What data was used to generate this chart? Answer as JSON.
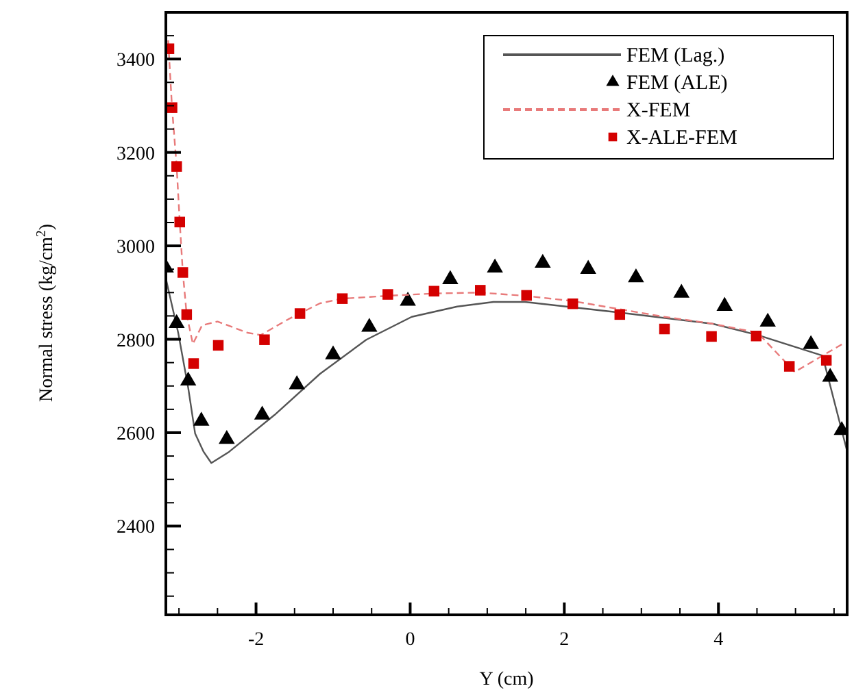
{
  "chart_data": {
    "type": "line",
    "xlabel": "Y (cm)",
    "ylabel": "Normal stress (kg/cm$^{2}$)",
    "xlim": [
      -3.17,
      5.67
    ],
    "ylim": [
      2210,
      3500
    ],
    "xticks": [
      {
        "value": -3,
        "label": null
      },
      {
        "value": -2.5,
        "label": null
      },
      -2,
      {
        "value": -1.5,
        "label": null
      },
      {
        "value": -1,
        "label": null
      },
      {
        "value": -0.5,
        "label": null
      },
      0,
      {
        "value": 0.5,
        "label": null
      },
      {
        "value": 1,
        "label": null
      },
      {
        "value": 1.5,
        "label": null
      },
      2,
      {
        "value": 2.5,
        "label": null
      },
      {
        "value": 3,
        "label": null
      },
      {
        "value": 3.5,
        "label": null
      },
      4,
      {
        "value": 4.5,
        "label": null
      },
      {
        "value": 5,
        "label": null
      },
      {
        "value": 5.5,
        "label": null
      }
    ],
    "yticks": [
      {
        "value": 2250,
        "label": null
      },
      {
        "value": 2300,
        "label": null
      },
      {
        "value": 2350,
        "label": null
      },
      2400,
      {
        "value": 2450,
        "label": null
      },
      {
        "value": 2500,
        "label": null
      },
      {
        "value": 2550,
        "label": null
      },
      2600,
      {
        "value": 2650,
        "label": null
      },
      {
        "value": 2700,
        "label": null
      },
      {
        "value": 2750,
        "label": null
      },
      2800,
      {
        "value": 2850,
        "label": null
      },
      {
        "value": 2900,
        "label": null
      },
      {
        "value": 2950,
        "label": null
      },
      3000,
      {
        "value": 3050,
        "label": null
      },
      {
        "value": 3100,
        "label": null
      },
      {
        "value": 3150,
        "label": null
      },
      3200,
      {
        "value": 3250,
        "label": null
      },
      {
        "value": 3300,
        "label": null
      },
      {
        "value": 3350,
        "label": null
      },
      3400,
      {
        "value": 3450,
        "label": null
      }
    ],
    "grid": false,
    "legend": "top right",
    "series": [
      {
        "name": "FEM (Lag.)",
        "color": "#555555",
        "line_style": "solid",
        "marker": "none",
        "x": [
          -3.17,
          -3.01,
          -2.88,
          -2.79,
          -2.68,
          -2.58,
          -2.35,
          -1.76,
          -1.17,
          -0.57,
          0.02,
          0.61,
          1.08,
          1.49,
          2.68,
          3.93,
          4.51,
          5.35,
          5.67
        ],
        "values": [
          2930,
          2814,
          2696,
          2598,
          2559,
          2535,
          2559,
          2638,
          2726,
          2799,
          2848,
          2870,
          2880,
          2880,
          2858,
          2833,
          2809,
          2765,
          2560
        ]
      },
      {
        "name": "FEM (ALE)",
        "type": "scatter",
        "color": "#000000",
        "marker": "triangle",
        "x": [
          -3.17,
          -3.03,
          -2.88,
          -2.71,
          -2.38,
          -1.92,
          -1.47,
          -1.0,
          -0.53,
          -0.03,
          0.52,
          1.1,
          1.72,
          2.31,
          2.93,
          3.52,
          4.08,
          4.64,
          5.2,
          5.45,
          5.6
        ],
        "values": [
          2953,
          2834,
          2711,
          2625,
          2586,
          2638,
          2703,
          2767,
          2826,
          2882,
          2928,
          2953,
          2963,
          2950,
          2932,
          2899,
          2871,
          2837,
          2789,
          2719,
          2605
        ]
      },
      {
        "name": "X-FEM",
        "color": "#e87a7a",
        "line_style": "dashed",
        "marker": "none",
        "x": [
          -3.14,
          -3.09,
          -3.03,
          -2.99,
          -2.95,
          -2.9,
          -2.82,
          -2.7,
          -2.5,
          -2.11,
          -1.94,
          -1.58,
          -1.17,
          -0.88,
          -0.3,
          0.3,
          0.9,
          1.5,
          2.1,
          2.7,
          3.3,
          3.9,
          4.51,
          4.99,
          5.3,
          5.6
        ],
        "values": [
          3440,
          3296,
          3170,
          3051,
          2943,
          2853,
          2790,
          2830,
          2838,
          2814,
          2809,
          2843,
          2877,
          2887,
          2893,
          2898,
          2900,
          2893,
          2882,
          2865,
          2848,
          2834,
          2814,
          2730,
          2760,
          2789
        ]
      },
      {
        "name": "X-ALE-FEM",
        "type": "scatter",
        "color": "#d40000",
        "marker": "square",
        "x": [
          -3.13,
          -3.09,
          -3.03,
          -2.99,
          -2.95,
          -2.9,
          -2.81,
          -2.49,
          -1.89,
          -1.43,
          -0.88,
          -0.29,
          0.31,
          0.91,
          1.51,
          2.11,
          2.72,
          3.3,
          3.91,
          4.49,
          4.92,
          5.4
        ],
        "values": [
          3422,
          3296,
          3170,
          3051,
          2943,
          2853,
          2748,
          2787,
          2799,
          2855,
          2887,
          2896,
          2903,
          2905,
          2894,
          2876,
          2853,
          2822,
          2806,
          2807,
          2742,
          2755
        ]
      }
    ]
  }
}
